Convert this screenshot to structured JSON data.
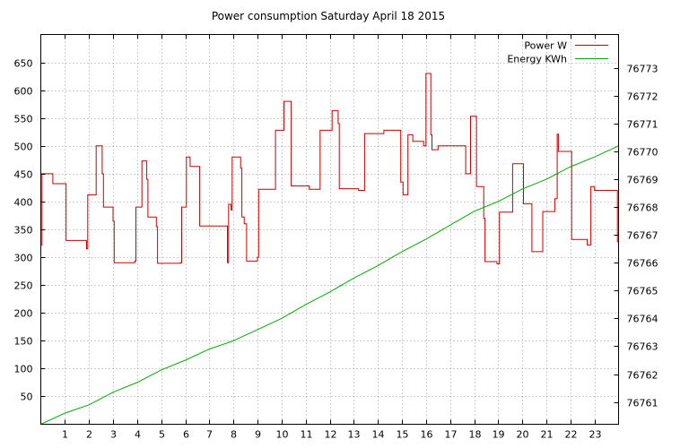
{
  "chart_data": {
    "type": "line",
    "title": "Power consumption Saturday April 18 2015",
    "xlabel": "",
    "ylabel": "",
    "xlim": [
      0,
      24
    ],
    "ylim": [
      0,
      700
    ],
    "y2lim": [
      76760.2,
      76774.2
    ],
    "x_ticks": [
      "1",
      "2",
      "3",
      "4",
      "5",
      "6",
      "7",
      "8",
      "9",
      "10",
      "11",
      "12",
      "13",
      "14",
      "15",
      "16",
      "17",
      "18",
      "19",
      "20",
      "21",
      "22",
      "23"
    ],
    "y_ticks": [
      "50",
      "100",
      "150",
      "200",
      "250",
      "300",
      "350",
      "400",
      "450",
      "500",
      "550",
      "600",
      "650"
    ],
    "y2_ticks": [
      "76761",
      "76762",
      "76763",
      "76764",
      "76765",
      "76766",
      "76767",
      "76768",
      "76769",
      "76770",
      "76771",
      "76772",
      "76773"
    ],
    "grid": true,
    "legend_position": "top-right",
    "series": [
      {
        "name": "Power W",
        "axis": "left",
        "color": "#cc0000",
        "step": true,
        "points": [
          [
            0.0,
            322
          ],
          [
            0.05,
            450
          ],
          [
            0.5,
            432
          ],
          [
            1.05,
            330
          ],
          [
            1.9,
            315
          ],
          [
            1.95,
            412
          ],
          [
            2.3,
            500
          ],
          [
            2.55,
            450
          ],
          [
            2.6,
            390
          ],
          [
            3.0,
            365
          ],
          [
            3.05,
            290
          ],
          [
            3.9,
            293
          ],
          [
            3.95,
            390
          ],
          [
            4.2,
            473
          ],
          [
            4.4,
            440
          ],
          [
            4.45,
            372
          ],
          [
            4.8,
            355
          ],
          [
            4.85,
            289
          ],
          [
            5.8,
            290
          ],
          [
            5.85,
            390
          ],
          [
            6.05,
            480
          ],
          [
            6.2,
            463
          ],
          [
            6.6,
            356
          ],
          [
            7.75,
            290
          ],
          [
            7.8,
            395
          ],
          [
            7.9,
            385
          ],
          [
            7.95,
            480
          ],
          [
            8.3,
            460
          ],
          [
            8.35,
            372
          ],
          [
            8.45,
            360
          ],
          [
            8.55,
            293
          ],
          [
            9.0,
            300
          ],
          [
            9.05,
            422
          ],
          [
            9.75,
            528
          ],
          [
            10.1,
            580
          ],
          [
            10.4,
            428
          ],
          [
            11.15,
            422
          ],
          [
            11.6,
            528
          ],
          [
            12.1,
            563
          ],
          [
            12.35,
            540
          ],
          [
            12.4,
            423
          ],
          [
            13.2,
            420
          ],
          [
            13.45,
            522
          ],
          [
            14.25,
            528
          ],
          [
            14.95,
            435
          ],
          [
            15.05,
            412
          ],
          [
            15.25,
            520
          ],
          [
            15.45,
            508
          ],
          [
            15.9,
            500
          ],
          [
            16.0,
            630
          ],
          [
            16.2,
            520
          ],
          [
            16.25,
            493
          ],
          [
            16.5,
            500
          ],
          [
            17.6,
            500
          ],
          [
            17.65,
            450
          ],
          [
            17.85,
            553
          ],
          [
            18.1,
            427
          ],
          [
            18.4,
            370
          ],
          [
            18.45,
            292
          ],
          [
            18.95,
            288
          ],
          [
            19.05,
            381
          ],
          [
            19.6,
            468
          ],
          [
            20.05,
            396
          ],
          [
            20.4,
            310
          ],
          [
            20.85,
            382
          ],
          [
            21.35,
            405
          ],
          [
            21.45,
            521
          ],
          [
            21.5,
            490
          ],
          [
            22.05,
            332
          ],
          [
            22.7,
            322
          ],
          [
            22.85,
            427
          ],
          [
            23.0,
            420
          ],
          [
            23.9,
            420
          ],
          [
            23.95,
            328
          ],
          [
            24.0,
            328
          ]
        ]
      },
      {
        "name": "Energy KWh",
        "axis": "right",
        "color": "#00aa00",
        "step": false,
        "points": [
          [
            0.0,
            76760.2
          ],
          [
            1.0,
            76760.6
          ],
          [
            2.0,
            76760.9
          ],
          [
            3.0,
            76761.35
          ],
          [
            4.0,
            76761.7
          ],
          [
            5.0,
            76762.15
          ],
          [
            6.0,
            76762.5
          ],
          [
            7.0,
            76762.9
          ],
          [
            8.0,
            76763.2
          ],
          [
            9.0,
            76763.6
          ],
          [
            10.0,
            76764.0
          ],
          [
            11.0,
            76764.5
          ],
          [
            12.0,
            76764.95
          ],
          [
            13.0,
            76765.45
          ],
          [
            14.0,
            76765.9
          ],
          [
            15.0,
            76766.4
          ],
          [
            16.0,
            76766.85
          ],
          [
            17.0,
            76767.35
          ],
          [
            18.0,
            76767.85
          ],
          [
            19.0,
            76768.2
          ],
          [
            20.0,
            76768.65
          ],
          [
            21.0,
            76769.0
          ],
          [
            22.0,
            76769.45
          ],
          [
            23.0,
            76769.8
          ],
          [
            24.0,
            76770.2
          ]
        ]
      }
    ]
  }
}
